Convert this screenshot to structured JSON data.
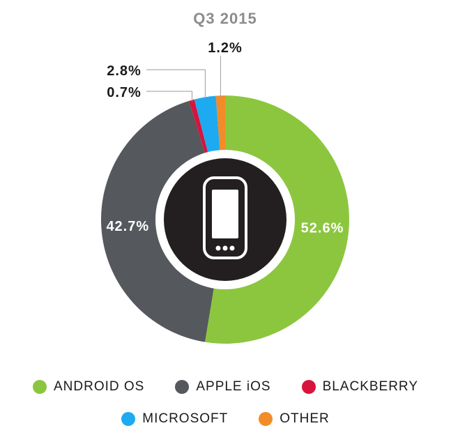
{
  "chart_data": {
    "type": "pie",
    "style": "donut",
    "title": "Q3 2015",
    "categories": [
      "ANDROID OS",
      "APPLE iOS",
      "BLACKBERRY",
      "MICROSOFT",
      "OTHER"
    ],
    "values": [
      52.6,
      42.7,
      0.7,
      2.8,
      1.2
    ],
    "value_labels": [
      "52.6%",
      "42.7%",
      "0.7%",
      "2.8%",
      "1.2%"
    ],
    "colors": [
      "#8cc63f",
      "#55585c",
      "#d7143c",
      "#1eaaf0",
      "#f28c28"
    ],
    "unit": "%",
    "legend_position": "bottom",
    "center_icon": "smartphone-icon"
  },
  "legend": {
    "row1": [
      {
        "label": "ANDROID OS",
        "color": "#8cc63f"
      },
      {
        "label": "APPLE iOS",
        "color": "#55585c"
      },
      {
        "label": "BLACKBERRY",
        "color": "#d7143c"
      }
    ],
    "row2": [
      {
        "label": "MICROSOFT",
        "color": "#1eaaf0"
      },
      {
        "label": "OTHER",
        "color": "#f28c28"
      }
    ]
  }
}
